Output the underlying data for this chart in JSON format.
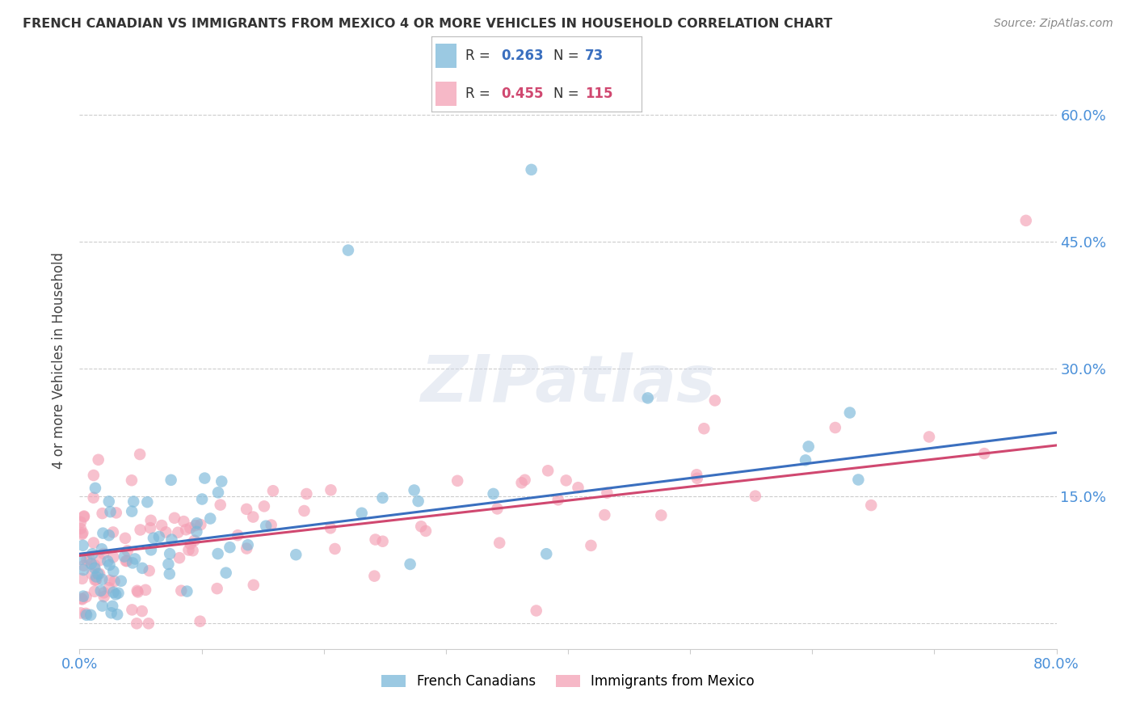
{
  "title": "FRENCH CANADIAN VS IMMIGRANTS FROM MEXICO 4 OR MORE VEHICLES IN HOUSEHOLD CORRELATION CHART",
  "source": "Source: ZipAtlas.com",
  "ylabel": "4 or more Vehicles in Household",
  "xlim": [
    0.0,
    0.8
  ],
  "ylim": [
    -0.03,
    0.65
  ],
  "xtick_positions": [
    0.0,
    0.1,
    0.2,
    0.3,
    0.4,
    0.5,
    0.6,
    0.7,
    0.8
  ],
  "xticklabels": [
    "0.0%",
    "",
    "",
    "",
    "",
    "",
    "",
    "",
    "80.0%"
  ],
  "ytick_positions": [
    0.0,
    0.15,
    0.3,
    0.45,
    0.6
  ],
  "yticklabels_right": [
    "",
    "15.0%",
    "30.0%",
    "45.0%",
    "60.0%"
  ],
  "legend_labels": [
    "French Canadians",
    "Immigrants from Mexico"
  ],
  "blue_color": "#7ab8d9",
  "pink_color": "#f4a0b5",
  "blue_line_color": "#3a6fbf",
  "pink_line_color": "#d04870",
  "blue_R": 0.263,
  "blue_N": 73,
  "pink_R": 0.455,
  "pink_N": 115,
  "watermark": "ZIPatlas",
  "tick_color": "#4a90d9",
  "grid_color": "#cccccc",
  "title_color": "#333333",
  "source_color": "#888888"
}
